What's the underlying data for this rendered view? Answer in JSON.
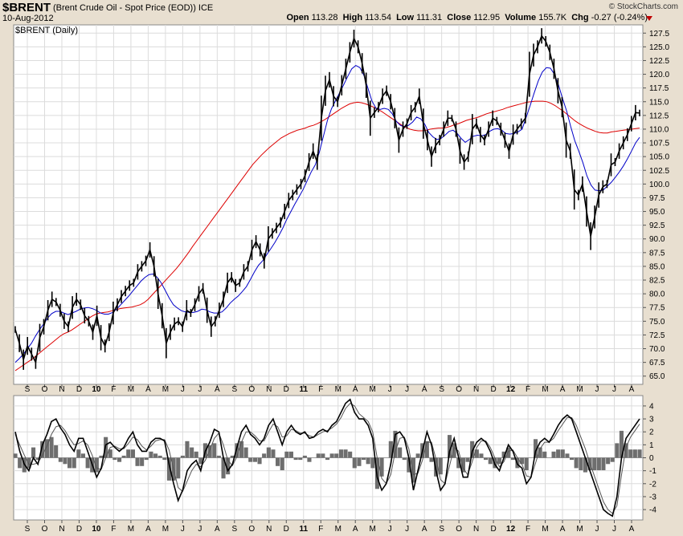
{
  "header": {
    "symbol": "$BRENT",
    "description": "(Brent Crude Oil - Spot Price (EOD)) ICE",
    "date": "10-Aug-2012",
    "brand": "© StockCharts.com",
    "open_label": "Open",
    "open_value": "113.28",
    "high_label": "High",
    "high_value": "113.54",
    "low_label": "Low",
    "low_value": "111.31",
    "close_label": "Close",
    "close_value": "112.95",
    "volume_label": "Volume",
    "volume_value": "155.7K",
    "chg_label": "Chg",
    "chg_value": "-0.27 (-0.24%)",
    "chg_color": "#c00000"
  },
  "chart_data": [
    {
      "type": "line",
      "panel": "price",
      "legend_label": "$BRENT (Daily)",
      "x_ticks": [
        "S",
        "O",
        "N",
        "D",
        "10",
        "F",
        "M",
        "A",
        "M",
        "J",
        "J",
        "A",
        "S",
        "O",
        "N",
        "D",
        "11",
        "F",
        "M",
        "A",
        "M",
        "J",
        "J",
        "A",
        "S",
        "O",
        "N",
        "D",
        "12",
        "F",
        "M",
        "A",
        "M",
        "J",
        "J",
        "A"
      ],
      "y_ticks": [
        65.0,
        67.5,
        70.0,
        72.5,
        75.0,
        77.5,
        80.0,
        82.5,
        85.0,
        87.5,
        90.0,
        92.5,
        95.0,
        97.5,
        100.0,
        102.5,
        105.0,
        107.5,
        110.0,
        112.5,
        115.0,
        117.5,
        120.0,
        122.5,
        125.0,
        127.5
      ],
      "ylim": [
        63.5,
        129.0
      ],
      "grid": true,
      "colors": {
        "price": "#000000",
        "ma_short": "#0000c8",
        "ma_long": "#dd0000"
      },
      "series": [
        {
          "role": "price",
          "values": [
            73.5,
            71,
            68,
            70.5,
            69,
            67.5,
            72,
            74,
            77,
            79,
            78.5,
            77,
            75,
            74,
            77.5,
            79,
            78,
            76,
            75,
            73,
            76,
            72,
            70.5,
            73,
            76.5,
            78,
            79.5,
            80.5,
            81.5,
            82,
            84,
            85,
            86,
            88,
            85,
            80,
            76,
            71,
            73,
            74.5,
            75,
            74,
            77,
            76.5,
            78,
            80,
            81,
            77,
            74,
            75,
            77,
            79,
            82,
            83,
            81.5,
            82,
            84,
            85,
            88,
            89.5,
            88,
            86,
            90,
            91,
            92,
            93,
            95,
            97,
            98,
            99,
            100,
            101.5,
            104,
            106,
            104,
            112,
            117,
            119,
            116,
            115,
            118,
            121,
            124,
            126.5,
            125,
            122,
            118,
            112,
            113,
            114,
            116,
            117,
            115,
            112,
            108,
            110,
            111,
            113,
            114,
            116,
            111,
            108,
            105,
            107,
            108,
            110,
            112,
            112,
            110,
            106,
            104,
            105,
            110,
            111,
            109,
            108,
            110,
            112,
            111.5,
            110,
            108,
            106,
            109,
            110,
            111,
            112,
            120,
            123.5,
            125,
            127,
            126,
            124,
            121,
            117,
            114,
            108,
            106,
            99,
            98,
            100,
            95,
            90.5,
            94,
            98,
            99.5,
            100,
            103.5,
            104,
            106,
            107.5,
            109,
            111,
            113,
            112.95
          ]
        },
        {
          "role": "ma_short",
          "values": [
            67.5,
            68.2,
            69,
            70,
            71,
            72.3,
            73.5,
            74.5,
            75.6,
            76.4,
            76.8,
            76.8,
            76.5,
            76.2,
            76.5,
            76.8,
            77.2,
            77.4,
            77.5,
            77.3,
            77,
            76.5,
            76.3,
            76.3,
            76.6,
            77.2,
            78,
            78.8,
            79.6,
            80.5,
            81.4,
            82.3,
            83,
            83.5,
            83.6,
            83,
            82,
            80.6,
            79.2,
            78,
            77.4,
            76.9,
            76.7,
            76.6,
            76.6,
            76.8,
            77.2,
            77.1,
            76.7,
            76.5,
            76.5,
            76.7,
            77.4,
            78.3,
            79,
            79.6,
            80.4,
            81.3,
            82.6,
            84,
            85.2,
            86,
            87.1,
            88.2,
            89.3,
            90.6,
            92,
            93.6,
            95,
            96.4,
            97.7,
            99,
            100.6,
            102.2,
            103.5,
            105.8,
            108.7,
            111.6,
            113.7,
            115.2,
            116.6,
            118.1,
            119.6,
            121,
            121.6,
            121.2,
            119.8,
            117.4,
            115.1,
            113.8,
            113.6,
            113.8,
            113.6,
            112.8,
            111.4,
            110.7,
            110.4,
            110.7,
            111.3,
            112.2,
            111.9,
            110.9,
            109.4,
            108.6,
            108.1,
            108.3,
            108.9,
            109.6,
            109.8,
            109.2,
            108.3,
            107.6,
            108.1,
            108.7,
            108.9,
            108.8,
            109,
            109.6,
            110,
            110.1,
            109.8,
            109.2,
            109.1,
            109.2,
            109.5,
            110,
            112.1,
            114.3,
            116.6,
            118.8,
            120.4,
            121.2,
            121.1,
            120,
            118,
            115.6,
            113.3,
            110.5,
            107.9,
            106,
            103.9,
            101.5,
            99.8,
            98.9,
            98.8,
            98.9,
            99.6,
            100.3,
            101.2,
            102.2,
            103.3,
            104.6,
            106,
            107.5,
            108.5
          ]
        },
        {
          "role": "ma_long",
          "values": [
            66,
            66.5,
            67,
            67.5,
            68,
            68.6,
            69.2,
            69.8,
            70.4,
            71,
            71.6,
            72.2,
            72.7,
            73,
            73.4,
            73.9,
            74.4,
            74.9,
            75.4,
            75.9,
            76.3,
            76.5,
            76.6,
            76.7,
            76.9,
            77.1,
            77.3,
            77.4,
            77.5,
            77.6,
            77.8,
            78,
            78.4,
            79,
            79.8,
            80.6,
            81.4,
            82.2,
            83,
            83.8,
            84.6,
            85.5,
            86.5,
            87.5,
            88.6,
            89.6,
            90.6,
            91.6,
            92.6,
            93.6,
            94.6,
            95.6,
            96.6,
            97.6,
            98.6,
            99.6,
            100.6,
            101.6,
            102.6,
            103.6,
            104.4,
            105.2,
            105.9,
            106.6,
            107.2,
            107.8,
            108.4,
            108.8,
            109.2,
            109.5,
            109.8,
            110,
            110.2,
            110.5,
            110.7,
            111,
            111.4,
            111.8,
            112.3,
            112.8,
            113.3,
            113.8,
            114.2,
            114.6,
            114.8,
            114.9,
            114.8,
            114.6,
            114.3,
            114,
            113.6,
            113.2,
            112.7,
            112.2,
            111.7,
            111.2,
            110.7,
            110.3,
            110,
            109.8,
            109.7,
            109.7,
            109.8,
            110,
            110.1,
            110.2,
            110.2,
            110.3,
            110.5,
            110.8,
            111,
            111.3,
            111.6,
            111.8,
            112,
            112.2,
            112.5,
            112.8,
            113,
            113.2,
            113.4,
            113.6,
            113.9,
            114.1,
            114.3,
            114.5,
            114.7,
            114.9,
            115,
            115.1,
            115.1,
            115.1,
            115,
            114.7,
            114.3,
            113.8,
            113.3,
            112.7,
            112.1,
            111.5,
            111,
            110.6,
            110.2,
            109.9,
            109.6,
            109.4,
            109.3,
            109.3,
            109.5,
            109.6,
            109.7,
            109.8,
            109.9,
            110,
            110.1,
            110.2
          ]
        }
      ]
    },
    {
      "type": "line",
      "panel": "oscillator",
      "x_ticks": [
        "S",
        "O",
        "N",
        "D",
        "10",
        "F",
        "M",
        "A",
        "M",
        "J",
        "J",
        "A",
        "S",
        "O",
        "N",
        "D",
        "11",
        "F",
        "M",
        "A",
        "M",
        "J",
        "J",
        "A",
        "S",
        "O",
        "N",
        "D",
        "12",
        "F",
        "M",
        "A",
        "M",
        "J",
        "J",
        "A"
      ],
      "y_ticks": [
        4,
        3,
        2,
        1,
        0,
        -1,
        -2,
        -3,
        -4
      ],
      "ylim": [
        -4.8,
        4.8
      ],
      "grid": true,
      "colors": {
        "line": "#000000",
        "signal": "#555555",
        "histogram": "#6e6e6e"
      },
      "series": [
        {
          "role": "line",
          "values": [
            2,
            0.5,
            -0.5,
            -1,
            0,
            -0.5,
            1,
            1.8,
            2.8,
            3,
            2.3,
            1.8,
            1,
            0.5,
            1.5,
            1.5,
            0.5,
            -0.5,
            -1.5,
            -0.8,
            1,
            1.2,
            0.8,
            0.5,
            0.8,
            1.5,
            2,
            1,
            0.5,
            0.5,
            1.2,
            1.5,
            1.5,
            1.3,
            -0.5,
            -2,
            -3.3,
            -2.5,
            -1,
            -0.5,
            -0.2,
            -1,
            0.5,
            1.2,
            2.2,
            2,
            0,
            -1,
            -0.5,
            0.8,
            2,
            2.5,
            1.8,
            1.5,
            1,
            1.5,
            2.5,
            3,
            2,
            1,
            2,
            2.5,
            2,
            1.8,
            2,
            1.5,
            1.6,
            2,
            2.2,
            2,
            2.5,
            2.8,
            3.5,
            4.2,
            4.5,
            3.5,
            3,
            3,
            2.5,
            1.5,
            -1.5,
            -2.5,
            -2,
            -0.5,
            1.8,
            2,
            1.5,
            0,
            -2.5,
            -1,
            0.5,
            2,
            1,
            -1,
            -2.5,
            -2,
            0.5,
            1.5,
            0,
            -1.5,
            -1.5,
            0.5,
            1.2,
            1.5,
            1.2,
            0.5,
            -0.5,
            -1,
            0,
            1,
            0.5,
            -0.5,
            -0.8,
            -2,
            -1.5,
            0.5,
            1.2,
            1.5,
            1.2,
            1.8,
            2.5,
            3,
            3.3,
            3,
            2,
            1,
            0,
            -1,
            -2,
            -3,
            -4,
            -4.3,
            -4.5,
            -3,
            0,
            1.5,
            2,
            2.5,
            3
          ]
        },
        {
          "role": "signal",
          "values": [
            1.8,
            1,
            0.2,
            -0.5,
            -0.5,
            -0.4,
            0.2,
            0.9,
            1.8,
            2.4,
            2.5,
            2.1,
            1.5,
            1,
            1.1,
            1.3,
            1,
            0.2,
            -0.8,
            -0.9,
            0,
            0.8,
            0.9,
            0.7,
            0.7,
            1.1,
            1.6,
            1.4,
            0.9,
            0.6,
            0.9,
            1.3,
            1.4,
            1.4,
            0.6,
            -0.9,
            -2.3,
            -2.6,
            -1.8,
            -1,
            -0.5,
            -0.7,
            -0.2,
            0.6,
            1.5,
            1.9,
            1,
            -0.2,
            -0.6,
            0.1,
            1.2,
            2,
            2,
            1.7,
            1.3,
            1.3,
            2,
            2.6,
            2.4,
            1.6,
            1.7,
            2.2,
            2.1,
            1.9,
            1.9,
            1.7,
            1.6,
            1.8,
            2,
            2.1,
            2.3,
            2.6,
            3.1,
            3.8,
            4.2,
            4,
            3.4,
            3.1,
            2.8,
            2,
            0,
            -1.6,
            -2,
            -1.3,
            0.5,
            1.5,
            1.6,
            0.7,
            -1.3,
            -1.2,
            -0.2,
            1.2,
            1.2,
            -0.1,
            -1.7,
            -2,
            -0.6,
            0.8,
            0.5,
            -0.8,
            -1.3,
            -0.3,
            0.8,
            1.3,
            1.3,
            0.8,
            0,
            -0.7,
            -0.3,
            0.5,
            0.6,
            0,
            -0.5,
            -1.4,
            -1.5,
            -0.4,
            0.7,
            1.2,
            1.2,
            1.5,
            2.1,
            2.6,
            3.1,
            3.1,
            2.5,
            1.6,
            0.7,
            -0.4,
            -1.4,
            -2.4,
            -3.4,
            -4,
            -4.3,
            -3.7,
            -1.3,
            0.8,
            1.6,
            2.1,
            2.6
          ]
        }
      ]
    }
  ]
}
